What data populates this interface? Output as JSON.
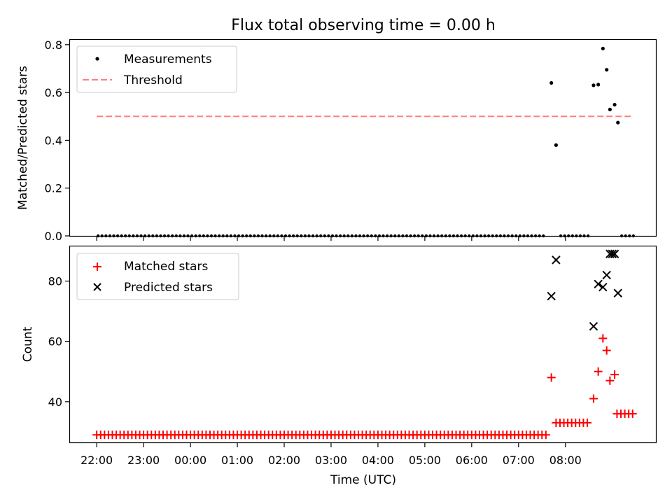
{
  "chart_data": [
    {
      "type": "scatter",
      "title": "Flux total observing time = 0.00 h",
      "xlabel": "",
      "ylabel": "Matched/Predicted stars",
      "ylim": [
        0,
        0.82
      ],
      "yticks": [
        "0.0",
        "0.2",
        "0.4",
        "0.6",
        "0.8"
      ],
      "ytick_values": [
        0,
        0.2,
        0.4,
        0.6,
        0.8
      ],
      "legend_position": "upper-left",
      "legend": [
        {
          "label": "Measurements",
          "marker": "dot",
          "color": "#000000"
        },
        {
          "label": "Threshold",
          "marker": "dashed-line",
          "color": "#ff7f7f"
        }
      ],
      "series": [
        {
          "name": "Measurements",
          "color": "#000000",
          "marker": "dot",
          "points": [
            [
              0.7,
              0.64
            ],
            [
              0.8,
              0.38
            ],
            [
              1.6,
              0.63
            ],
            [
              1.7,
              0.633
            ],
            [
              1.8,
              0.784
            ],
            [
              1.88,
              0.695
            ],
            [
              1.95,
              0.529
            ],
            [
              2.05,
              0.549
            ],
            [
              2.12,
              0.474
            ]
          ],
          "zero_runs": [
            {
              "x_start": -8.97,
              "x_end": 0.6,
              "step": 0.08333
            },
            {
              "x_start": 0.9,
              "x_end": 1.52,
              "step": 0.08333
            },
            {
              "x_start": 2.2,
              "x_end": 2.45,
              "step": 0.08333
            }
          ]
        },
        {
          "name": "Threshold",
          "color": "#ff7f7f",
          "style": "dashed",
          "line": [
            [
              -9.0,
              0.5
            ],
            [
              2.4,
              0.5
            ]
          ]
        }
      ]
    },
    {
      "type": "scatter",
      "title": "",
      "xlabel": "Time (UTC)",
      "ylabel": "Count",
      "ylim": [
        26.5,
        91.5
      ],
      "yticks": [
        "40",
        "60",
        "80"
      ],
      "ytick_values": [
        40,
        60,
        80
      ],
      "x_unit": "hours relative to 07:00 UTC",
      "xlim": [
        -9.57,
        2.93
      ],
      "xticks": [
        "22:00",
        "23:00",
        "00:00",
        "01:00",
        "02:00",
        "03:00",
        "04:00",
        "05:00",
        "06:00",
        "07:00",
        "08:00"
      ],
      "xtick_values": [
        -9,
        -8,
        -7,
        -6,
        -5,
        -4,
        -3,
        -2,
        -1,
        0,
        1
      ],
      "legend_position": "upper-left",
      "legend": [
        {
          "label": "Matched stars",
          "marker": "plus",
          "color": "#ff0000"
        },
        {
          "label": "Predicted stars",
          "marker": "x",
          "color": "#000000"
        }
      ],
      "series": [
        {
          "name": "Matched stars",
          "color": "#ff0000",
          "marker": "plus",
          "points": [
            [
              0.7,
              48
            ],
            [
              1.6,
              41
            ],
            [
              1.7,
              50
            ],
            [
              1.8,
              61
            ],
            [
              1.88,
              57
            ],
            [
              1.95,
              47
            ],
            [
              2.05,
              49
            ]
          ],
          "runs": [
            {
              "x_start": -9.0,
              "x_end": 0.6,
              "step": 0.08333,
              "value": 29
            },
            {
              "x_start": 0.8,
              "x_end": 1.52,
              "step": 0.08333,
              "value": 33
            },
            {
              "x_start": 2.1,
              "x_end": 2.5,
              "step": 0.08333,
              "value": 36
            }
          ]
        },
        {
          "name": "Predicted stars",
          "color": "#000000",
          "marker": "x",
          "points": [
            [
              0.7,
              75
            ],
            [
              0.8,
              87
            ],
            [
              1.6,
              65
            ],
            [
              1.7,
              79
            ],
            [
              1.8,
              78
            ],
            [
              1.88,
              82
            ],
            [
              1.95,
              89
            ],
            [
              2.0,
              89
            ],
            [
              2.05,
              89
            ],
            [
              2.12,
              76
            ]
          ]
        }
      ]
    }
  ]
}
